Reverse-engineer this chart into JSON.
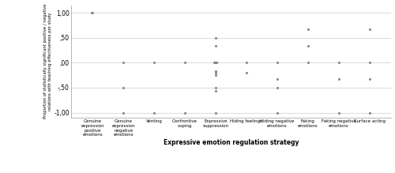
{
  "categories": [
    "Genuine\nexpression\npositive\nemotions",
    "Genuine\nexpression\nnegative\nemotions",
    "Venting",
    "Confrontive\ncoping",
    "Expressive\nsuppression",
    "Hiding feelings",
    "Hiding negative\nemotions",
    "Faking\nemotions",
    "Faking negative\nemotions",
    "Surface acting"
  ],
  "data_points": [
    [
      1.0,
      1.0
    ],
    [
      0.0,
      -0.5,
      -1.0
    ],
    [
      0.0,
      -1.0
    ],
    [
      0.0,
      -1.0
    ],
    [
      0.5,
      0.33,
      0.0,
      0.0,
      0.0,
      0.0,
      0.0,
      0.0,
      -0.17,
      -0.2,
      -0.25,
      -0.5,
      -0.57,
      -1.0
    ],
    [
      0.0,
      -0.2
    ],
    [
      0.0,
      -0.33,
      -0.5,
      -1.0
    ],
    [
      0.67,
      0.33,
      0.0
    ],
    [
      0.0,
      -0.33,
      -1.0
    ],
    [
      0.67,
      0.0,
      -0.33,
      -1.0
    ]
  ],
  "ylim": [
    -1.1,
    1.15
  ],
  "yticks": [
    -1.0,
    -0.5,
    0.0,
    0.5,
    1.0
  ],
  "ytick_labels": [
    "-1,00",
    "-,50",
    ",00",
    ",50",
    "1,00"
  ],
  "ylabel": "Proportion of statistically significant positive / negative\nrelations with teaching effectiveness per study",
  "xlabel": "Expressive emotion regulation strategy",
  "dot_color": "#888888",
  "dot_size": 5,
  "background_color": "#ffffff",
  "grid_color": "#cccccc",
  "figure_width": 5.0,
  "figure_height": 2.19,
  "dpi": 100
}
